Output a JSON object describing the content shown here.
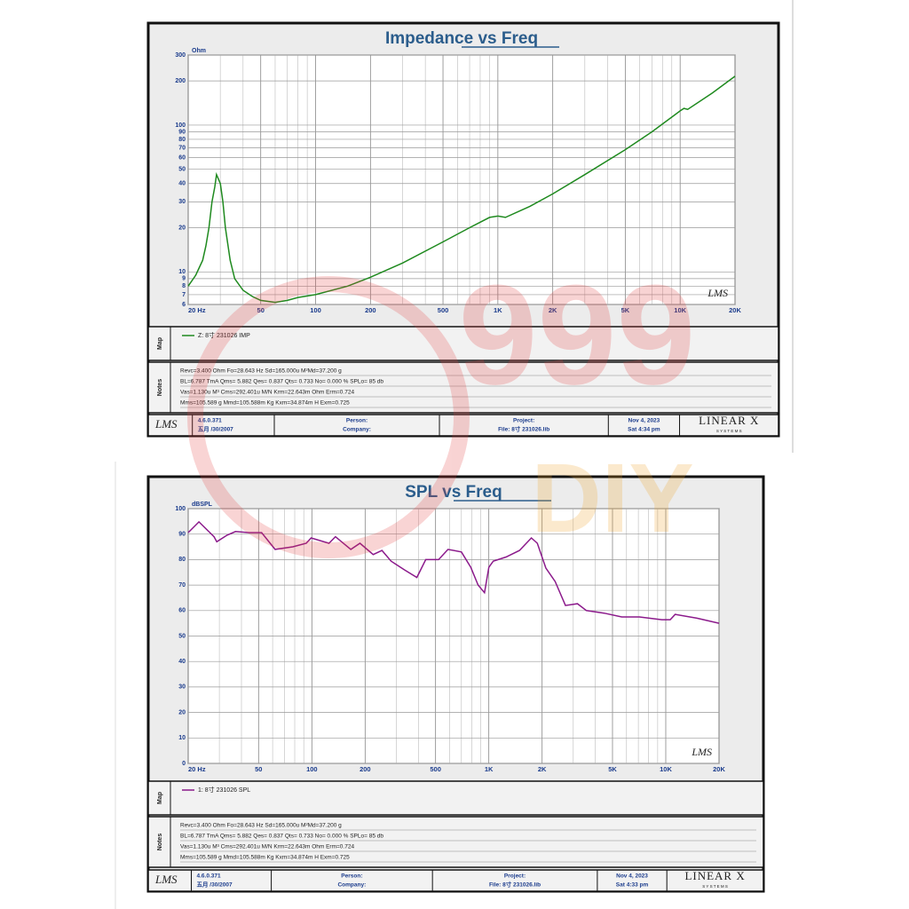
{
  "chart_data": [
    {
      "type": "line",
      "title": "Impedance vs Freq",
      "y_label": "Ohm",
      "logo": "LMS",
      "x": [
        20,
        22,
        24,
        25,
        26,
        27,
        28,
        28.6,
        30,
        31,
        32,
        34,
        36,
        40,
        45,
        50,
        60,
        70,
        80,
        100,
        150,
        200,
        300,
        500,
        700,
        900,
        1000,
        1100,
        1500,
        2000,
        3000,
        5000,
        7000,
        10000,
        10500,
        11000,
        15000,
        20000
      ],
      "series": [
        {
          "name": "Z: 8寸 231026 IMP",
          "color": "#1f8a1f",
          "values": [
            8,
            9.5,
            12,
            15,
            20,
            30,
            38,
            46,
            40,
            30,
            20,
            12,
            9,
            7.5,
            6.8,
            6.4,
            6.2,
            6.4,
            6.7,
            7,
            8,
            9.2,
            11.5,
            16,
            20,
            23.5,
            24,
            23.5,
            28,
            34,
            46,
            68,
            90,
            125,
            130,
            128,
            165,
            215
          ]
        }
      ],
      "xscale": "log",
      "yscale": "log",
      "xlim": [
        20,
        20000
      ],
      "ylim": [
        6,
        300
      ],
      "xticks": [
        {
          "value": 20,
          "label": "20 Hz"
        },
        50,
        100,
        200,
        500,
        {
          "value": 1000,
          "label": "1K"
        },
        {
          "value": 2000,
          "label": "2K"
        },
        {
          "value": 5000,
          "label": "5K"
        },
        {
          "value": 10000,
          "label": "10K"
        },
        {
          "value": 20000,
          "label": "20K"
        }
      ],
      "xminor": [
        30,
        40,
        60,
        70,
        80,
        90,
        300,
        400,
        600,
        700,
        800,
        900,
        3000,
        4000,
        6000,
        7000,
        8000,
        9000
      ],
      "yticks": [
        6,
        7,
        8,
        9,
        10,
        20,
        30,
        40,
        50,
        60,
        70,
        80,
        90,
        100,
        200,
        300
      ],
      "grid": true
    },
    {
      "type": "line",
      "title": "SPL vs Freq",
      "y_label": "dBSPL",
      "logo": "LMS",
      "x": [
        20,
        23,
        28,
        29,
        33,
        37,
        44,
        52,
        62,
        78,
        93,
        99,
        125,
        136,
        166,
        187,
        222,
        249,
        280,
        333,
        392,
        440,
        520,
        588,
        700,
        790,
        870,
        945,
        1000,
        1060,
        1250,
        1490,
        1740,
        1880,
        2100,
        2370,
        2710,
        3170,
        3560,
        4480,
        5640,
        7100,
        9500,
        10600,
        11300,
        15000,
        20000
      ],
      "series": [
        {
          "name": "1: 8寸 231026 SPL",
          "color": "#8b1a8b",
          "values": [
            90.6,
            94.8,
            89,
            87,
            89.5,
            91,
            90.6,
            90.6,
            84,
            85,
            86.4,
            88.5,
            86.4,
            89,
            84,
            86.4,
            82,
            83.6,
            79.4,
            76,
            73,
            80,
            80,
            84,
            83,
            77,
            70,
            67,
            77,
            79.4,
            81,
            83.6,
            88.5,
            86.4,
            76.7,
            71.4,
            62,
            62.7,
            60,
            59,
            57.5,
            57.5,
            56.4,
            56.4,
            58.5,
            57,
            55
          ]
        }
      ],
      "xscale": "log",
      "yscale": "linear",
      "xlim": [
        20,
        20000
      ],
      "ylim": [
        0,
        100
      ],
      "xticks": [
        {
          "value": 20,
          "label": "20 Hz"
        },
        50,
        100,
        200,
        500,
        {
          "value": 1000,
          "label": "1K"
        },
        {
          "value": 2000,
          "label": "2K"
        },
        {
          "value": 5000,
          "label": "5K"
        },
        {
          "value": 10000,
          "label": "10K"
        },
        {
          "value": 20000,
          "label": "20K"
        }
      ],
      "xminor": [
        30,
        40,
        60,
        70,
        80,
        90,
        300,
        400,
        600,
        700,
        800,
        900,
        3000,
        4000,
        6000,
        7000,
        8000,
        9000
      ],
      "yticks": [
        0,
        10,
        20,
        30,
        40,
        50,
        60,
        70,
        80,
        90,
        100
      ],
      "grid": true
    }
  ],
  "panels": [
    {
      "map_label": "Map",
      "notes_label": "Notes",
      "notes": [
        "Revc=3.400 Ohm  Fo=28.643 Hz  Sd=165.000u M²Md=37.200 g",
        "BL=6.787 TmA  Qms= 5.882  Qes= 0.837  Qts= 0.733  No= 0.000 %   SPLo= 85 db",
        "Vas=1.130u M³ Cms=292.401u M/N  Krm=22.643m Ohm  Erm=0.724",
        "Mms=105.589 g  Mmd=105.588m Kg  Kxm=34.874m H  Exm=0.725"
      ],
      "footer": {
        "logo": "LMS",
        "version": "4.6.0.371",
        "version_date": "五月 /30/2007",
        "person": "Person:",
        "company": "Company:",
        "project": "Project:",
        "file": "File: 8寸 231026.lib",
        "date": "Nov  4, 2023",
        "time": "Sat  4:34 pm",
        "brand": "LINEAR X",
        "brand_sub": "S Y S T E M S"
      }
    },
    {
      "map_label": "Map",
      "notes_label": "Notes",
      "notes": [
        "Revc=3.400 Ohm  Fo=28.643 Hz  Sd=165.000u M²Md=37.200 g",
        "BL=6.787 TmA  Qms= 5.882  Qes= 0.837  Qts= 0.733  No= 0.000 %   SPLo= 85 db",
        "Vas=1.130u M³ Cms=292.401u M/N  Krm=22.643m Ohm  Erm=0.724",
        "Mms=105.589 g  Mmd=105.588m Kg  Kxm=34.874m H  Exm=0.725"
      ],
      "footer": {
        "logo": "LMS",
        "version": "4.6.0.371",
        "version_date": "五月 /30/2007",
        "person": "Person:",
        "company": "Company:",
        "project": "Project:",
        "file": "File: 8寸 231026.lib",
        "date": "Nov  4, 2023",
        "time": "Sat  4:33 pm",
        "brand": "LINEAR X",
        "brand_sub": "S Y S T E M S"
      }
    }
  ],
  "watermark": {
    "number": "999",
    "word": "DIY"
  }
}
